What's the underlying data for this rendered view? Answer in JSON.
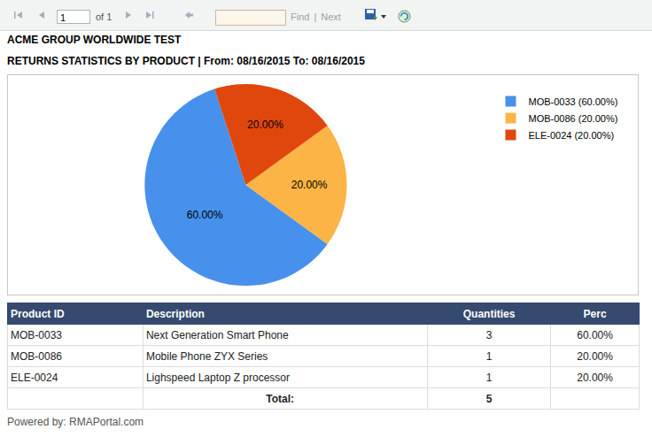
{
  "toolbar": {
    "page": "1",
    "page_of": "of 1",
    "find": "Find",
    "find_separator": "|",
    "next": "Next"
  },
  "report": {
    "title": "ACME GROUP WORLDWIDE TEST",
    "subtitle": "RETURNS STATISTICS BY PRODUCT | From: 08/16/2015 To: 08/16/2015"
  },
  "chart_data": {
    "type": "pie",
    "categories": [
      "MOB-0033 (60.00%)",
      "MOB-0086 (20.00%)",
      "ELE-0024 (20.00%)"
    ],
    "values": [
      60,
      20,
      20
    ],
    "value_labels": [
      "60.00%",
      "20.00%",
      "20.00%"
    ],
    "colors": [
      "#4791ec",
      "#fbb445",
      "#e0470d"
    ],
    "data_labels": true,
    "legend": "top right"
  },
  "table": {
    "header": [
      "Product ID",
      "Description",
      "Quantities",
      "Perc"
    ],
    "rows": [
      [
        "MOB-0033",
        "Next Generation Smart Phone",
        3,
        "60.00%"
      ],
      [
        "MOB-0086",
        "Mobile Phone ZYX Series",
        1,
        "20.00%"
      ],
      [
        "ELE-0024",
        "Lighspeed Laptop Z processor",
        1,
        "20.00%"
      ]
    ],
    "total": {
      "label": "Total:",
      "quantity": 5
    }
  },
  "footer": "Powered by: RMAPortal.com"
}
